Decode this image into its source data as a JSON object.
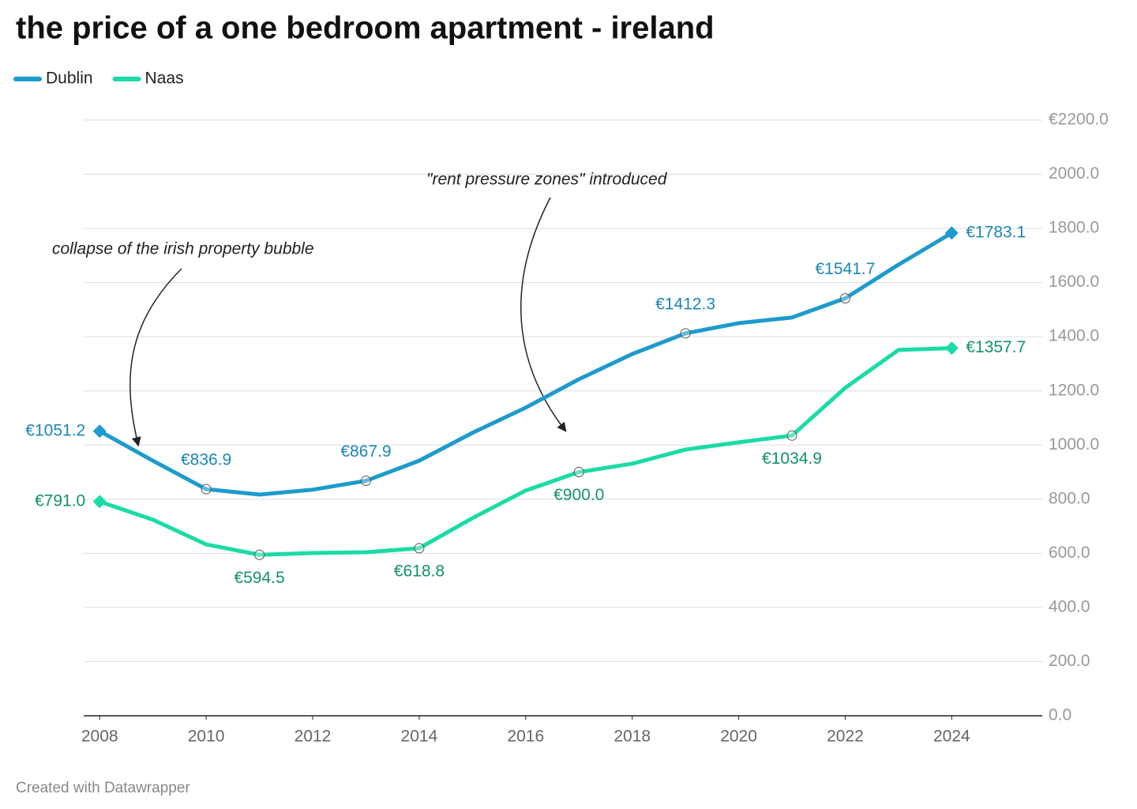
{
  "chart_data": {
    "type": "line",
    "title": "the price of a one bedroom apartment - ireland",
    "x": [
      2008,
      2009,
      2010,
      2011,
      2012,
      2013,
      2014,
      2015,
      2016,
      2017,
      2018,
      2019,
      2020,
      2021,
      2022,
      2023,
      2024
    ],
    "series": [
      {
        "name": "Dublin",
        "color": "#1d9bcc",
        "label_color": "#1a87b5",
        "values": [
          1051.2,
          942,
          836.9,
          817,
          835,
          867.9,
          942,
          1045,
          1138,
          1243,
          1336,
          1412.3,
          1450,
          1471,
          1541.7,
          1666,
          1783.1
        ],
        "value_labels": [
          "€1051.2",
          null,
          "€836.9",
          null,
          null,
          "€867.9",
          null,
          null,
          null,
          null,
          null,
          "€1412.3",
          null,
          null,
          "€1541.7",
          null,
          "€1783.1"
        ]
      },
      {
        "name": "Naas",
        "color": "#1adba6",
        "label_color": "#12916a",
        "values": [
          791.0,
          724,
          633,
          594.5,
          601,
          604,
          618.8,
          730,
          832,
          900.0,
          931,
          983,
          1010,
          1034.9,
          1211,
          1351,
          1357.7
        ],
        "value_labels": [
          "€791.0",
          null,
          null,
          "€594.5",
          null,
          null,
          "€618.8",
          null,
          null,
          "€900.0",
          null,
          null,
          null,
          "€1034.9",
          null,
          null,
          "€1357.7"
        ]
      }
    ],
    "xlim": [
      2007.7,
      2025.7
    ],
    "xticks": [
      2008,
      2010,
      2012,
      2014,
      2016,
      2018,
      2020,
      2022,
      2024
    ],
    "ylim": [
      0,
      2200
    ],
    "yticks": [
      {
        "value": 0,
        "label": "0.0"
      },
      {
        "value": 200,
        "label": "200.0"
      },
      {
        "value": 400,
        "label": "400.0"
      },
      {
        "value": 600,
        "label": "600.0"
      },
      {
        "value": 800,
        "label": "800.0"
      },
      {
        "value": 1000,
        "label": "1000.0"
      },
      {
        "value": 1200,
        "label": "1200.0"
      },
      {
        "value": 1400,
        "label": "1400.0"
      },
      {
        "value": 1600,
        "label": "1600.0"
      },
      {
        "value": 1800,
        "label": "1800.0"
      },
      {
        "value": 2000,
        "label": "2000.0"
      },
      {
        "value": 2200,
        "label": "€2200.0"
      }
    ],
    "grid": true,
    "annotations": [
      "collapse of the irish property bubble",
      "\"rent pressure zones\" introduced"
    ],
    "footer": "Created with Datawrapper"
  }
}
